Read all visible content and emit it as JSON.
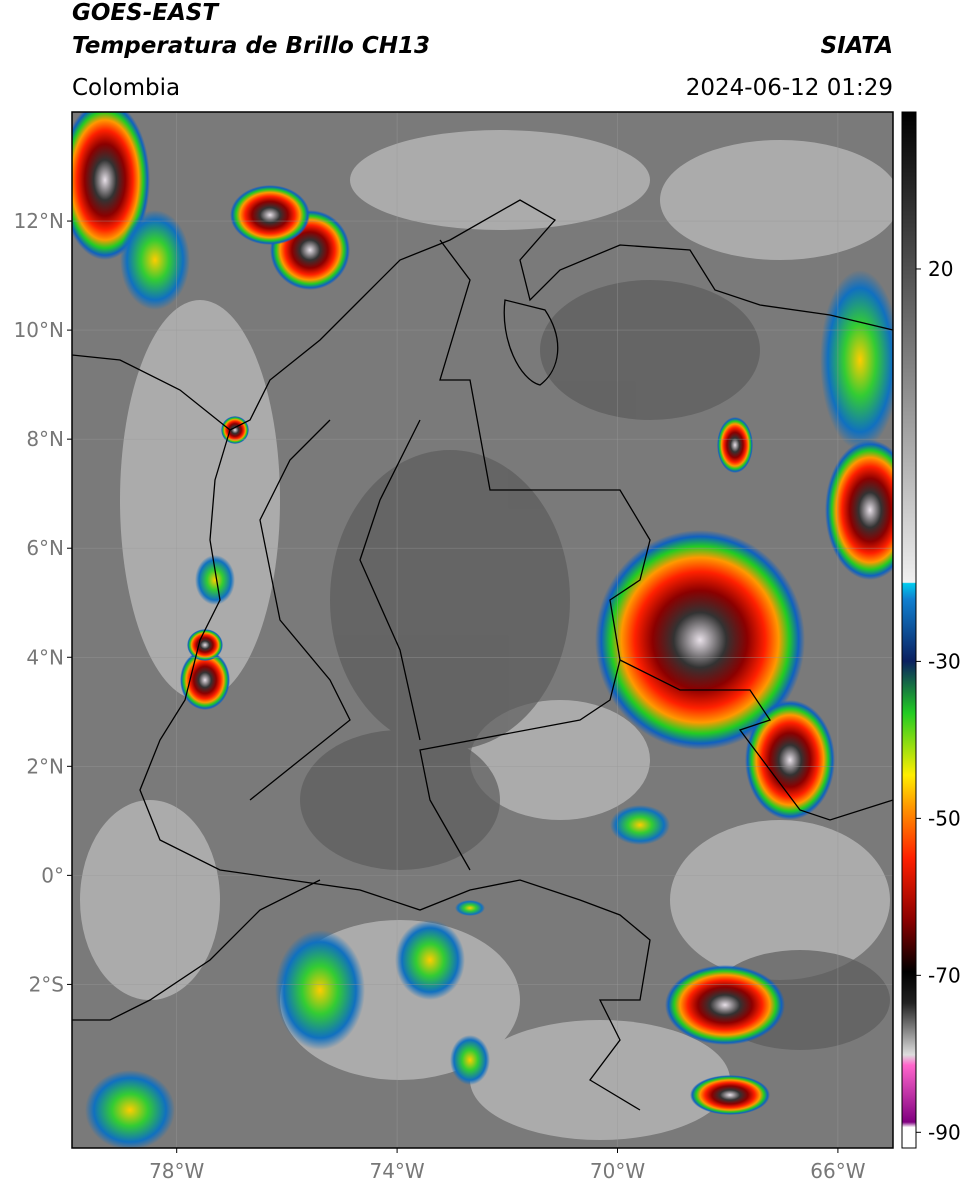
{
  "header": {
    "title": "GOES-EAST",
    "subtitle": "Temperatura de Brillo CH13",
    "region": "Colombia",
    "source": "SIATA",
    "datetime": "2024-06-12 01:29"
  },
  "map": {
    "xlim": [
      -79.9,
      -65.0
    ],
    "ylim": [
      -5,
      14
    ],
    "xticks": [
      {
        "value": -78,
        "label": "78°W"
      },
      {
        "value": -74,
        "label": "74°W"
      },
      {
        "value": -70,
        "label": "70°W"
      },
      {
        "value": -66,
        "label": "66°W"
      }
    ],
    "yticks": [
      {
        "value": 12,
        "label": "12°N"
      },
      {
        "value": 10,
        "label": "10°N"
      },
      {
        "value": 8,
        "label": "8°N"
      },
      {
        "value": 6,
        "label": "6°N"
      },
      {
        "value": 4,
        "label": "4°N"
      },
      {
        "value": 2,
        "label": "2°N"
      },
      {
        "value": 0,
        "label": "0°"
      },
      {
        "value": -2,
        "label": "2°S"
      }
    ],
    "grid": true
  },
  "colorbar": {
    "clim": [
      -92,
      40
    ],
    "ticks": [
      20,
      -30,
      -50,
      -70,
      -90
    ]
  }
}
